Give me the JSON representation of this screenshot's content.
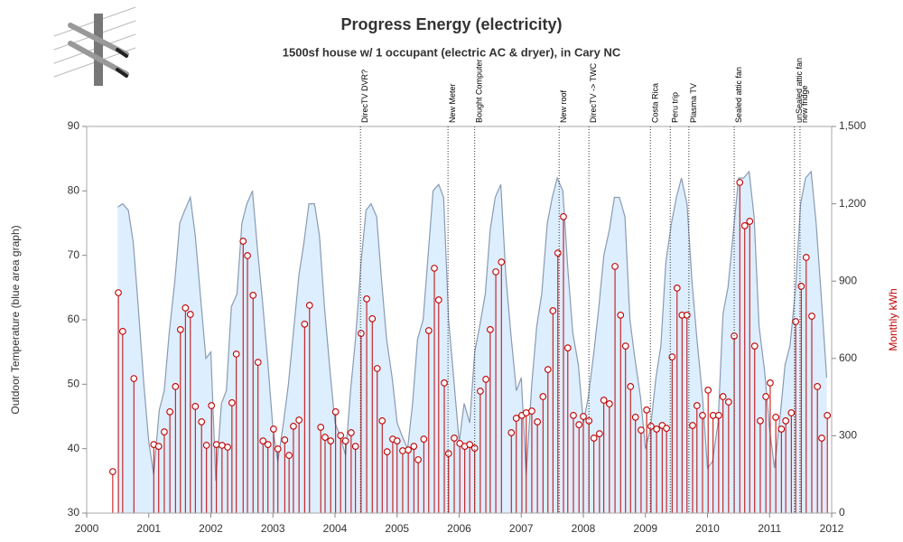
{
  "chart_data": {
    "type": "combo",
    "title": "Progress Energy (electricity)",
    "subtitle": "1500sf house w/ 1 occupant (electric AC & dryer), in Cary NC",
    "y_label": "Outdoor Temperature (blue area graph)",
    "y2_label": "Monthly kWh",
    "xlim": [
      2000,
      2012
    ],
    "xticks": [
      2000,
      2001,
      2002,
      2003,
      2004,
      2005,
      2006,
      2007,
      2008,
      2009,
      2010,
      2011,
      2012
    ],
    "ylim": [
      30,
      90
    ],
    "yticks": [
      30,
      40,
      50,
      60,
      70,
      80,
      90
    ],
    "y2lim": [
      0,
      1500
    ],
    "y2ticks": [
      0,
      300,
      600,
      900,
      {
        "value": 1200,
        "label": "1,200"
      },
      {
        "value": 1500,
        "label": "1,500"
      }
    ],
    "series": [
      {
        "type": "area",
        "color": "#ddeeff",
        "line_color": "#8a9bb0",
        "x": [
          2000.5,
          2000.58,
          2000.67,
          2000.75,
          2000.83,
          2000.92,
          2001.0,
          2001.08,
          2001.17,
          2001.25,
          2001.33,
          2001.42,
          2001.5,
          2001.58,
          2001.67,
          2001.75,
          2001.83,
          2001.92,
          2002.0,
          2002.08,
          2002.17,
          2002.25,
          2002.33,
          2002.42,
          2002.5,
          2002.58,
          2002.67,
          2002.75,
          2002.83,
          2002.92,
          2003.0,
          2003.08,
          2003.17,
          2003.25,
          2003.33,
          2003.42,
          2003.5,
          2003.58,
          2003.67,
          2003.75,
          2003.83,
          2003.92,
          2004.0,
          2004.08,
          2004.17,
          2004.25,
          2004.33,
          2004.42,
          2004.5,
          2004.58,
          2004.67,
          2004.75,
          2004.83,
          2004.92,
          2005.0,
          2005.08,
          2005.17,
          2005.25,
          2005.33,
          2005.42,
          2005.5,
          2005.58,
          2005.67,
          2005.75,
          2005.83,
          2005.92,
          2006.0,
          2006.08,
          2006.17,
          2006.25,
          2006.33,
          2006.42,
          2006.5,
          2006.58,
          2006.67,
          2006.75,
          2006.83,
          2006.92,
          2007.0,
          2007.08,
          2007.17,
          2007.25,
          2007.33,
          2007.42,
          2007.5,
          2007.58,
          2007.67,
          2007.75,
          2007.83,
          2007.92,
          2008.0,
          2008.08,
          2008.17,
          2008.25,
          2008.33,
          2008.42,
          2008.5,
          2008.58,
          2008.67,
          2008.75,
          2008.83,
          2008.92,
          2009.0,
          2009.08,
          2009.17,
          2009.25,
          2009.33,
          2009.42,
          2009.5,
          2009.58,
          2009.67,
          2009.75,
          2009.83,
          2009.92,
          2010.0,
          2010.08,
          2010.17,
          2010.25,
          2010.33,
          2010.42,
          2010.5,
          2010.58,
          2010.67,
          2010.75,
          2010.83,
          2010.92,
          2011.0,
          2011.08,
          2011.17,
          2011.25,
          2011.33,
          2011.42,
          2011.5,
          2011.58,
          2011.67,
          2011.75,
          2011.83,
          2011.92
        ],
        "values": [
          77.5,
          78,
          77,
          72,
          62,
          50,
          41,
          36,
          46,
          49,
          58,
          66,
          75,
          77,
          79,
          73,
          64,
          54,
          55,
          35,
          47,
          49,
          62,
          64,
          75,
          78,
          80,
          71,
          63,
          53,
          43,
          38,
          44,
          50,
          58,
          67,
          72,
          78,
          78,
          73,
          62,
          52,
          44,
          42,
          39,
          49,
          57,
          69,
          77,
          78,
          76,
          66,
          57,
          51,
          44,
          42,
          40,
          47,
          57,
          60,
          70,
          80,
          81,
          79,
          60,
          50,
          41,
          47,
          44,
          55,
          59,
          64,
          74,
          79,
          81,
          67,
          58,
          49,
          51,
          36,
          50,
          59,
          64,
          75,
          79,
          82,
          80,
          68,
          58,
          53,
          44,
          48,
          55,
          62,
          70,
          74,
          79,
          79,
          76,
          60,
          54,
          48,
          40,
          43,
          51,
          56,
          69,
          75,
          79,
          82,
          78,
          66,
          57,
          48,
          37,
          38,
          44,
          61,
          65,
          74,
          82,
          82,
          83,
          76,
          59,
          52,
          43,
          37,
          45,
          53,
          56,
          65,
          78,
          82,
          83,
          75,
          64,
          51
        ]
      },
      {
        "type": "needle",
        "axis": "y2",
        "color": "#c00000",
        "x": [
          2000.42,
          2000.51,
          2000.58,
          2000.76,
          2001.08,
          2001.16,
          2001.25,
          2001.34,
          2001.43,
          2001.51,
          2001.59,
          2001.67,
          2001.75,
          2001.85,
          2001.93,
          2002.01,
          2002.09,
          2002.18,
          2002.27,
          2002.34,
          2002.41,
          2002.52,
          2002.59,
          2002.68,
          2002.76,
          2002.84,
          2002.92,
          2003.01,
          2003.08,
          2003.19,
          2003.26,
          2003.33,
          2003.42,
          2003.51,
          2003.59,
          2003.77,
          2003.84,
          2003.93,
          2004.01,
          2004.09,
          2004.17,
          2004.26,
          2004.33,
          2004.42,
          2004.51,
          2004.6,
          2004.68,
          2004.76,
          2004.84,
          2004.93,
          2005.0,
          2005.09,
          2005.18,
          2005.27,
          2005.34,
          2005.43,
          2005.51,
          2005.6,
          2005.67,
          2005.76,
          2005.83,
          2005.92,
          2006.01,
          2006.09,
          2006.17,
          2006.25,
          2006.34,
          2006.43,
          2006.5,
          2006.59,
          2006.68,
          2006.84,
          2006.92,
          2007.01,
          2007.08,
          2007.17,
          2007.26,
          2007.35,
          2007.43,
          2007.51,
          2007.59,
          2007.68,
          2007.75,
          2007.84,
          2007.93,
          2008.0,
          2008.09,
          2008.17,
          2008.26,
          2008.33,
          2008.42,
          2008.51,
          2008.6,
          2008.68,
          2008.76,
          2008.84,
          2008.93,
          2009.02,
          2009.09,
          2009.18,
          2009.27,
          2009.34,
          2009.43,
          2009.51,
          2009.59,
          2009.67,
          2009.76,
          2009.83,
          2009.92,
          2010.01,
          2010.09,
          2010.18,
          2010.25,
          2010.34,
          2010.43,
          2010.52,
          2010.6,
          2010.68,
          2010.76,
          2010.85,
          2010.94,
          2011.01,
          2011.1,
          2011.19,
          2011.26,
          2011.35,
          2011.42,
          2011.51,
          2011.59,
          2011.68,
          2011.77,
          2011.84,
          2011.93
        ],
        "values": [
          161,
          855,
          705,
          522,
          266,
          259,
          315,
          393,
          491,
          712,
          796,
          771,
          414,
          354,
          263,
          417,
          266,
          263,
          256,
          428,
          617,
          1055,
          999,
          845,
          585,
          280,
          266,
          326,
          249,
          284,
          224,
          337,
          361,
          733,
          806,
          333,
          294,
          280,
          393,
          301,
          280,
          312,
          259,
          697,
          831,
          754,
          561,
          358,
          238,
          287,
          280,
          242,
          245,
          259,
          207,
          287,
          708,
          950,
          827,
          505,
          231,
          291,
          270,
          259,
          266,
          252,
          473,
          519,
          712,
          936,
          974,
          312,
          368,
          379,
          389,
          396,
          354,
          452,
          557,
          785,
          1009,
          1150,
          641,
          379,
          343,
          375,
          358,
          291,
          308,
          438,
          424,
          957,
          768,
          648,
          491,
          372,
          322,
          400,
          337,
          326,
          340,
          329,
          606,
          873,
          768,
          768,
          340,
          417,
          379,
          477,
          379,
          379,
          452,
          431,
          687,
          1283,
          1115,
          1132,
          648,
          358,
          452,
          505,
          372,
          326,
          358,
          389,
          743,
          880,
          992,
          764,
          491,
          291,
          379
        ]
      }
    ],
    "annotations": [
      {
        "x": 2004.41,
        "label": "DirecTV DVR?"
      },
      {
        "x": 2005.82,
        "label": "New Meter"
      },
      {
        "x": 2006.25,
        "label": "Bought  Computer"
      },
      {
        "x": 2007.61,
        "label": "New roof"
      },
      {
        "x": 2008.09,
        "label": "DirecTV -> TWC"
      },
      {
        "x": 2009.08,
        "label": "Costa Rica"
      },
      {
        "x": 2009.4,
        "label": "Peru trip"
      },
      {
        "x": 2009.7,
        "label": "Plasma TV"
      },
      {
        "x": 2010.43,
        "label": "Sealed attic fan"
      },
      {
        "x": 2011.4,
        "label": "unSealed attic fan"
      },
      {
        "x": 2011.49,
        "label": "new fridge"
      }
    ]
  }
}
